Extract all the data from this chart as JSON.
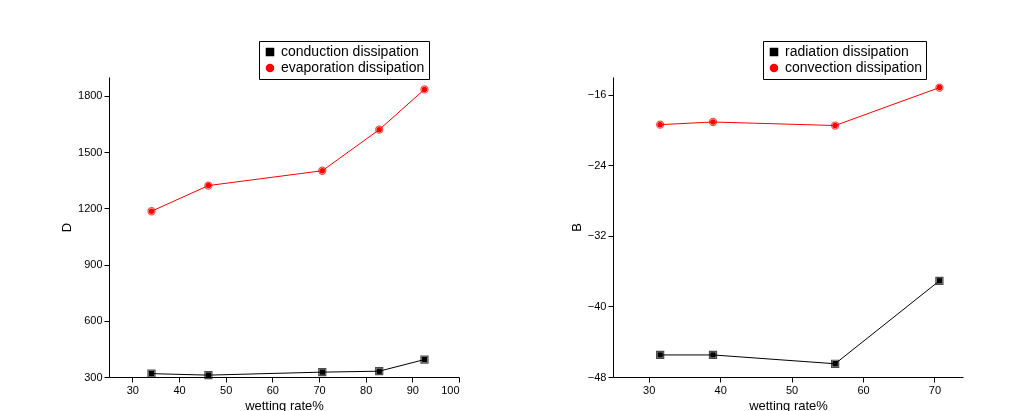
{
  "chart_data": [
    {
      "type": "line",
      "xlabel": "wetting rate%",
      "ylabel": "D",
      "xlim": [
        25,
        100
      ],
      "xticks": [
        30,
        40,
        50,
        60,
        70,
        80,
        90,
        100
      ],
      "ylim": [
        300,
        1900
      ],
      "yticks": [
        300,
        600,
        900,
        1200,
        1500,
        1800
      ],
      "grid": false,
      "legend": "top right",
      "series": [
        {
          "name": "conduction dissipation",
          "color": "#000000",
          "marker": "square",
          "x": [
            34.1,
            46.3,
            70.7,
            82.9,
            92.6
          ],
          "values": [
            318,
            310,
            326,
            331,
            393
          ]
        },
        {
          "name": "evaporation dissipation",
          "color": "#ff0000",
          "marker": "circle",
          "x": [
            34.1,
            46.3,
            70.7,
            82.9,
            92.6
          ],
          "values": [
            1184,
            1321,
            1400,
            1619,
            1834
          ]
        }
      ]
    },
    {
      "type": "line",
      "xlabel": "wetting rate%",
      "ylabel": "B",
      "xlim": [
        25,
        74
      ],
      "xticks": [
        30,
        40,
        50,
        60,
        70
      ],
      "ylim": [
        -48,
        -14
      ],
      "yticks": [
        -48,
        -40,
        -32,
        -24,
        -16
      ],
      "grid": false,
      "legend": "top right",
      "series": [
        {
          "name": "radiation dissipation",
          "color": "#000000",
          "marker": "square",
          "x": [
            31.6,
            39.0,
            56.1,
            70.7
          ],
          "values": [
            -45.5,
            -45.5,
            -46.5,
            -37.1
          ]
        },
        {
          "name": "convection dissipation",
          "color": "#ff0000",
          "marker": "circle",
          "x": [
            31.6,
            39.0,
            56.1,
            70.7
          ],
          "values": [
            -19.4,
            -19.1,
            -19.5,
            -15.2
          ]
        }
      ]
    }
  ]
}
